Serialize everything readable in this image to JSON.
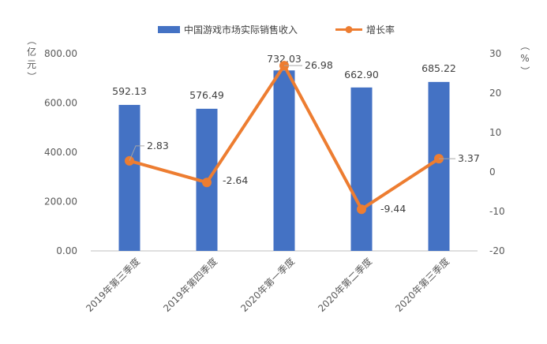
{
  "chart_data": {
    "type": "bar+line",
    "categories": [
      "2019年第三季度",
      "2019年第四季度",
      "2020年第一季度",
      "2020年第二季度",
      "2020年第三季度"
    ],
    "series": [
      {
        "name": "中国游戏市场实际销售收入",
        "type": "bar",
        "axis": "left",
        "values": [
          592.13,
          576.49,
          732.03,
          662.9,
          685.22
        ],
        "labels": [
          "592.13",
          "576.49",
          "732.03",
          "662.90",
          "685.22"
        ],
        "color": "#4472C4"
      },
      {
        "name": "增长率",
        "type": "line",
        "axis": "right",
        "values": [
          2.83,
          -2.64,
          26.98,
          -9.44,
          3.37
        ],
        "labels": [
          "2.83",
          "-2.64",
          "26.98",
          "-9.44",
          "3.37"
        ],
        "color": "#ED7D31"
      }
    ],
    "left_axis": {
      "label_chars": [
        "（",
        "亿",
        "元",
        "）"
      ],
      "ylim": [
        0,
        800
      ],
      "ticks": [
        "0.00",
        "200.00",
        "400.00",
        "600.00",
        "800.00"
      ]
    },
    "right_axis": {
      "label_chars": [
        "（",
        "%",
        "）"
      ],
      "ylim": [
        -20,
        30
      ],
      "ticks": [
        "-20",
        "-10",
        "0",
        "10",
        "20",
        "30"
      ]
    },
    "legend": {
      "placement": "top-center"
    },
    "grid": false
  }
}
